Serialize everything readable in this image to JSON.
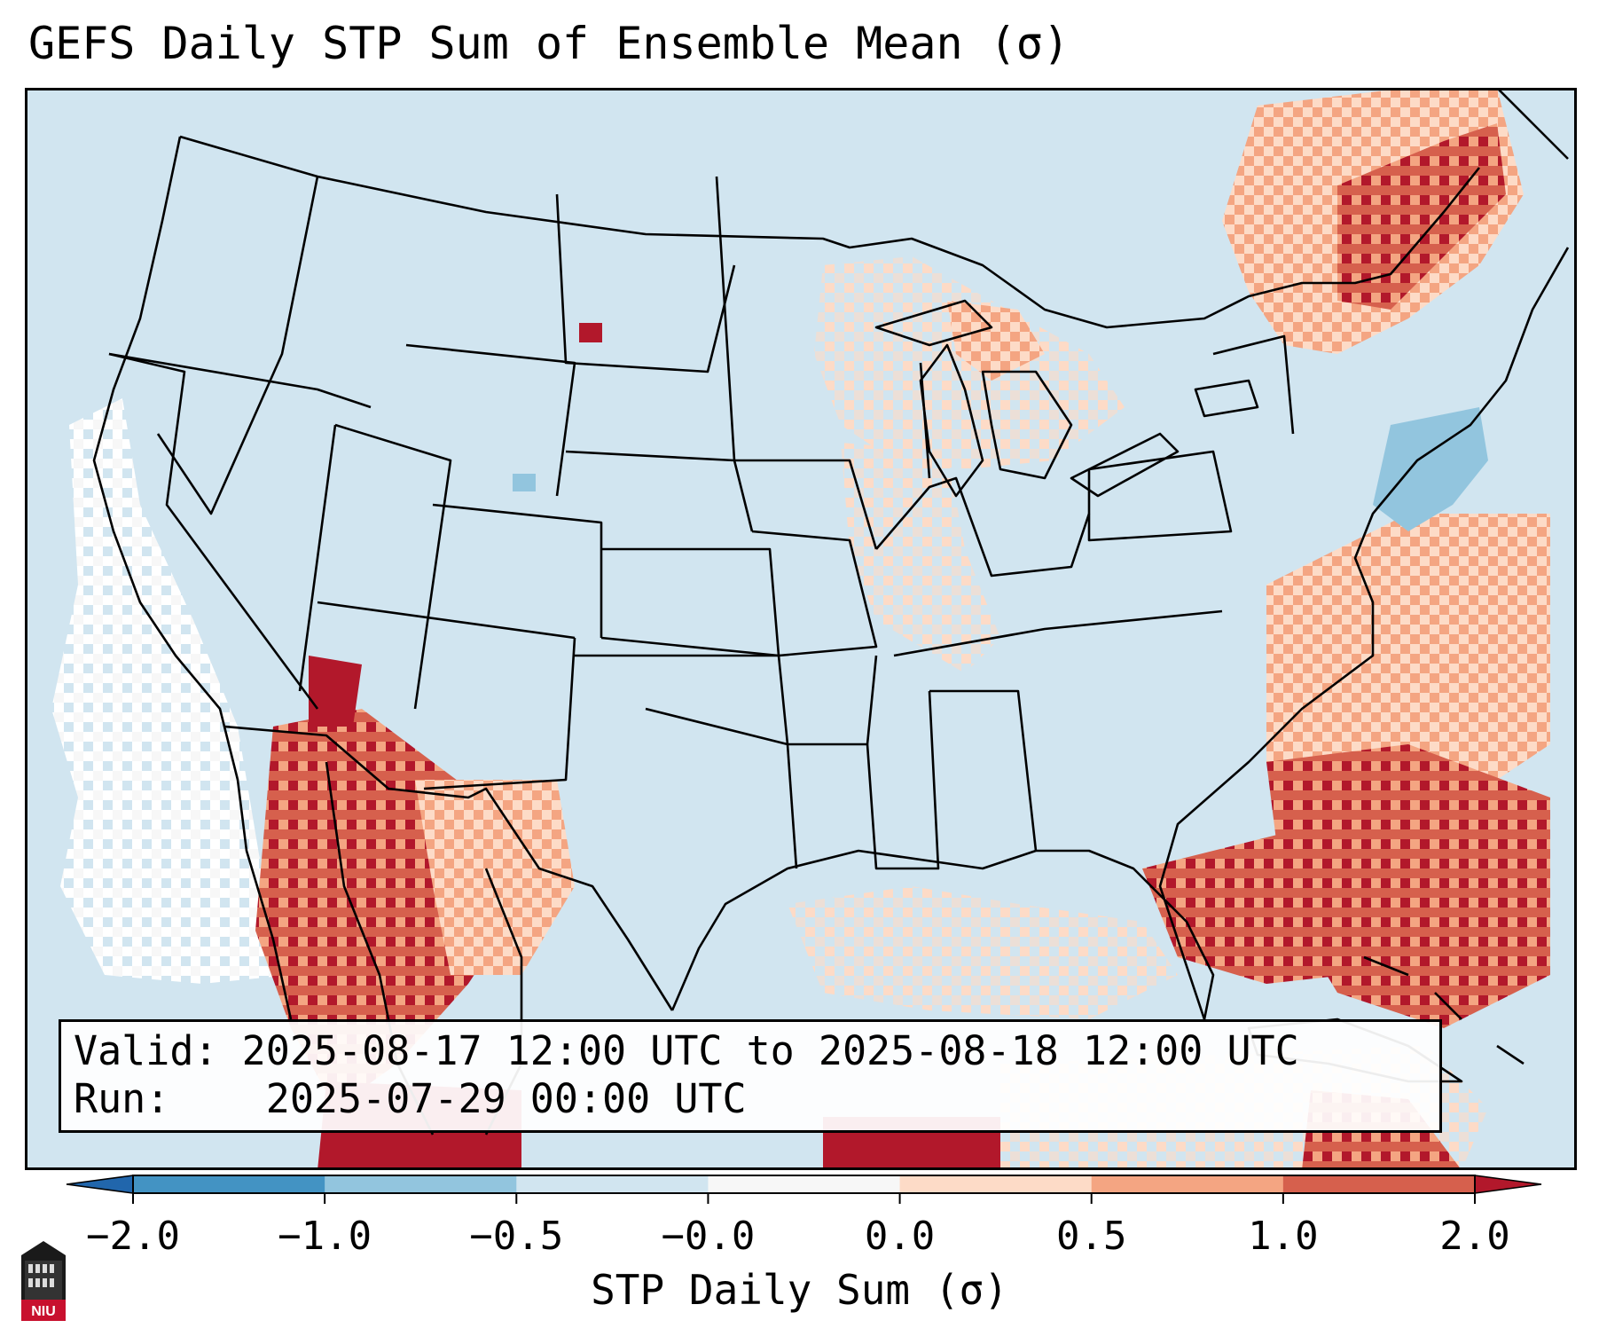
{
  "title": "GEFS Daily STP Sum of Ensemble Mean (σ)",
  "info": {
    "valid_label": "Valid:",
    "valid_text": "2025-08-17 12:00 UTC to 2025-08-18 12:00 UTC",
    "run_label": "Run:",
    "run_text": "2025-07-29 00:00 UTC"
  },
  "colorbar": {
    "label": "STP Daily Sum (σ)",
    "ticks": [
      "−2.0",
      "−1.0",
      "−0.5",
      "−0.0",
      "0.0",
      "0.5",
      "1.0",
      "2.0"
    ],
    "bins": [
      {
        "from": -2.0,
        "to": -1.0,
        "color": "#4393c3"
      },
      {
        "from": -1.0,
        "to": -0.5,
        "color": "#92c5de"
      },
      {
        "from": -0.5,
        "to": -0.0,
        "color": "#d1e5f0"
      },
      {
        "from": -0.0,
        "to": 0.0,
        "color": "#f7f7f7"
      },
      {
        "from": 0.0,
        "to": 0.5,
        "color": "#fddbc7"
      },
      {
        "from": 0.5,
        "to": 1.0,
        "color": "#f4a582"
      },
      {
        "from": 1.0,
        "to": 2.0,
        "color": "#d6604d"
      }
    ],
    "under_color": "#2166ac",
    "over_color": "#b2182b"
  },
  "map": {
    "background_color": "#d1e5f0",
    "region": "Contiguous United States, southern Canada, northern Mexico, Gulf of Mexico and western Atlantic"
  },
  "logo": {
    "text": "NIU",
    "color": "#c8102e"
  }
}
